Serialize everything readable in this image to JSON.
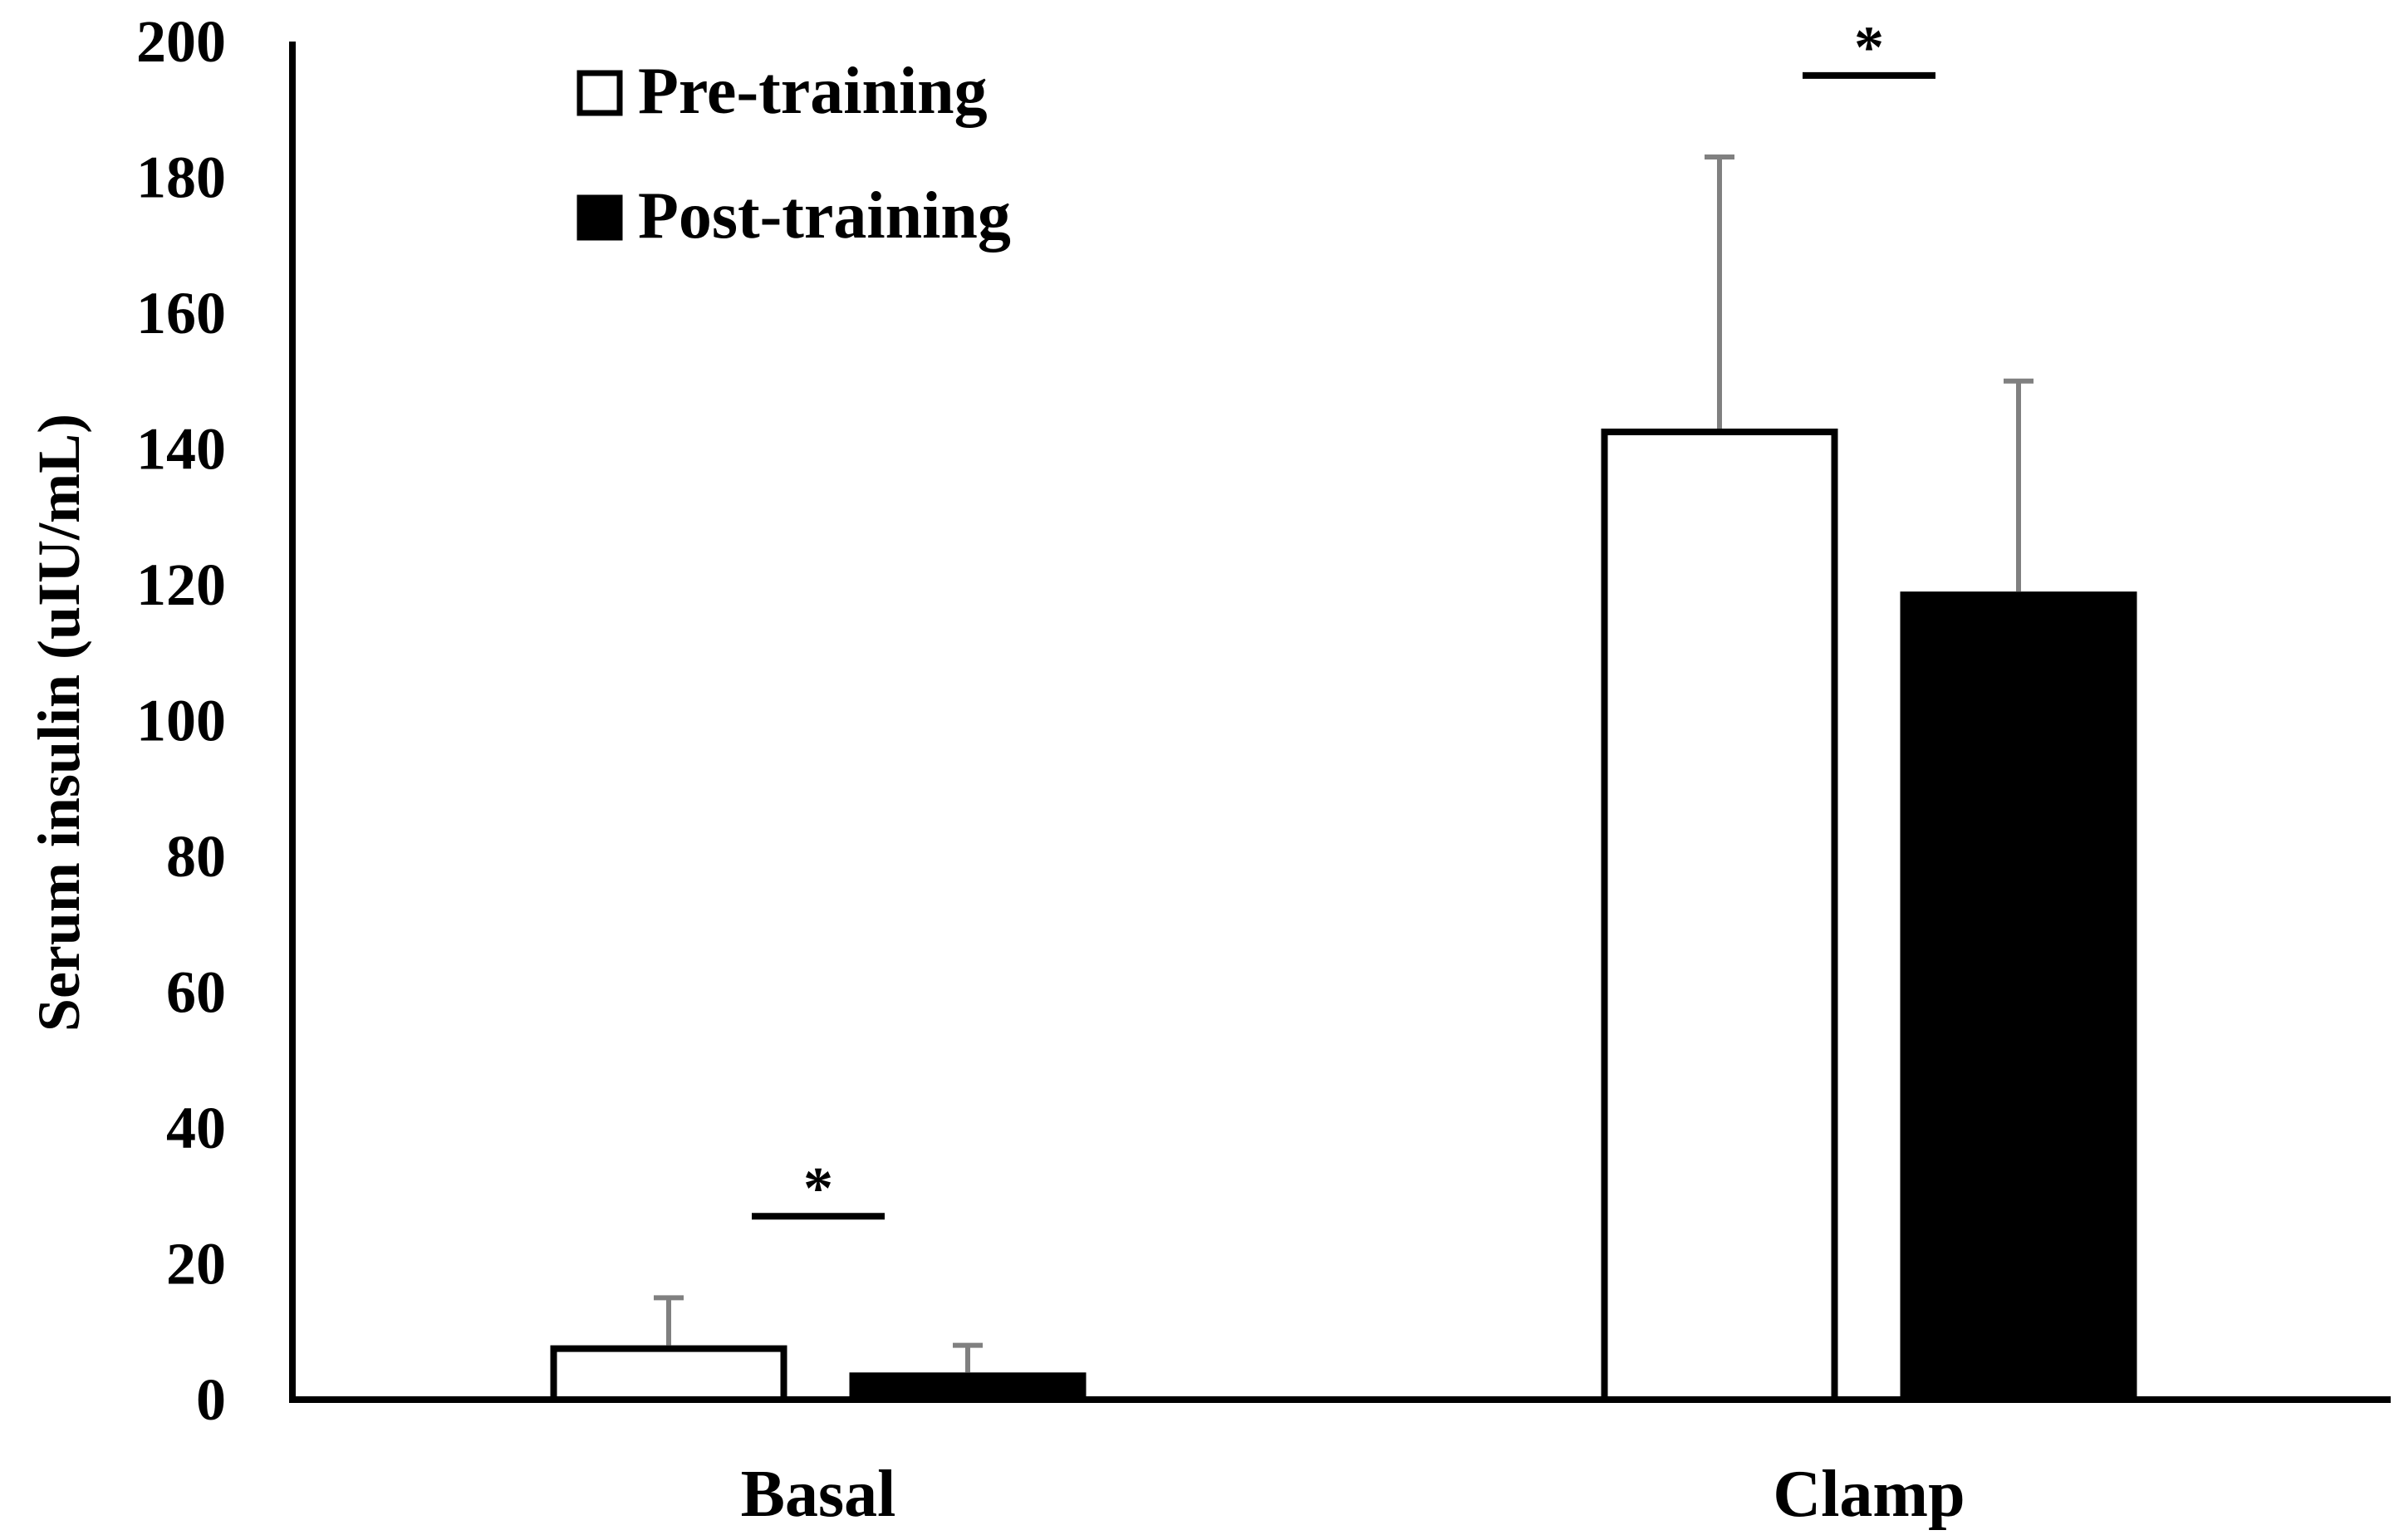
{
  "chart_data": {
    "type": "bar",
    "title": "",
    "xlabel": "",
    "ylabel": "Serum insulin (uIU/mL)",
    "ylim": [
      0,
      200
    ],
    "yticks": [
      0,
      20,
      40,
      60,
      80,
      100,
      120,
      140,
      160,
      180,
      200
    ],
    "categories": [
      "Basal",
      "Clamp"
    ],
    "series": [
      {
        "name": "Pre-training",
        "values": [
          8,
          143
        ],
        "errors": [
          7,
          40
        ],
        "fill": "#ffffff",
        "stroke": "#000000"
      },
      {
        "name": "Post-training",
        "values": [
          4,
          119
        ],
        "errors": [
          4,
          31
        ],
        "fill": "#000000",
        "stroke": "#000000"
      }
    ],
    "annotations": [
      {
        "category": "Basal",
        "text": "*",
        "y": 27
      },
      {
        "category": "Clamp",
        "text": "*",
        "y": 195
      }
    ],
    "grid": false,
    "legend_position": "top-left",
    "colors": {
      "axis": "#000000",
      "error_bar": "#808080"
    }
  }
}
